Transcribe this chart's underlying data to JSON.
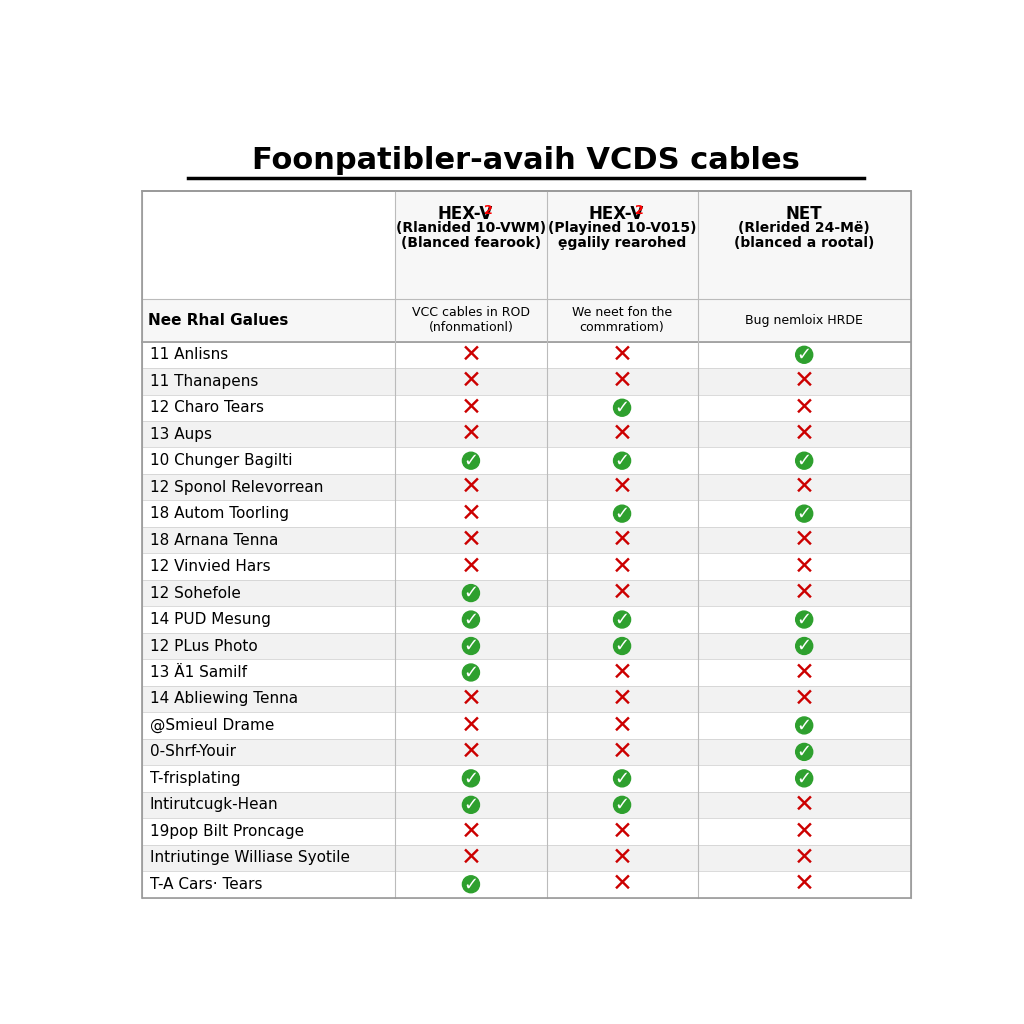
{
  "title": "Foonpatibler-avaih VCDS cables",
  "col1_line1": "HEX-V",
  "col1_line2": "(Rlanided 10-VWM)",
  "col1_line3": "(Blanced fearook)",
  "col2_line1": "HEX-V",
  "col2_line2": "(Playined 10-V015)",
  "col2_line3": "ȩgalily rearohed",
  "col3_line1": "NET",
  "col3_line2": "(Rlerided 24-Më)",
  "col3_line3": "(blanced a rootal)",
  "col_subheaders": [
    "VCC cables in ROD\n(nfonmationl)",
    "We neet fon the\ncommratiom)",
    "Bug nemloix HRDE"
  ],
  "row_header": "Nee Rhal Galues",
  "rows": [
    "11 Anlisns",
    "11 Thanapens",
    "12 Charo Tears",
    "13 Aups",
    "10 Chunger Bagilti",
    "12 Sponol Relevorrean",
    "18 Autom Toorling",
    "18 Arnana Tenna",
    "12 Vinvied Hars",
    "12 Sohefole",
    "14 PUD Mesung",
    "12 PLus Photo",
    "13 Ä1 Samilf",
    "14 Abliewing Tenna",
    "@Smieul Drame",
    "0-Shrf-Youir",
    "T-frisplating",
    "Intirutcugk-Hean",
    "19pop Bilt Proncage",
    "Intriutinge Williase Syotile",
    "T-A Cars· Tears"
  ],
  "data": [
    [
      0,
      0,
      1
    ],
    [
      0,
      0,
      0
    ],
    [
      0,
      1,
      0
    ],
    [
      0,
      0,
      0
    ],
    [
      1,
      1,
      1
    ],
    [
      0,
      0,
      0
    ],
    [
      0,
      1,
      1
    ],
    [
      0,
      0,
      0
    ],
    [
      0,
      0,
      0
    ],
    [
      1,
      0,
      0
    ],
    [
      1,
      1,
      1
    ],
    [
      1,
      1,
      1
    ],
    [
      1,
      0,
      0
    ],
    [
      0,
      0,
      0
    ],
    [
      0,
      0,
      1
    ],
    [
      0,
      0,
      1
    ],
    [
      1,
      1,
      1
    ],
    [
      1,
      1,
      0
    ],
    [
      0,
      0,
      0
    ],
    [
      0,
      0,
      0
    ],
    [
      1,
      0,
      0
    ]
  ],
  "check_color": "#2ea02e",
  "cross_color": "#cc0000",
  "title_fontsize": 22,
  "header_fontsize": 11,
  "subheader_fontsize": 9,
  "row_fontsize": 11,
  "border_color": "#bbbbbb"
}
